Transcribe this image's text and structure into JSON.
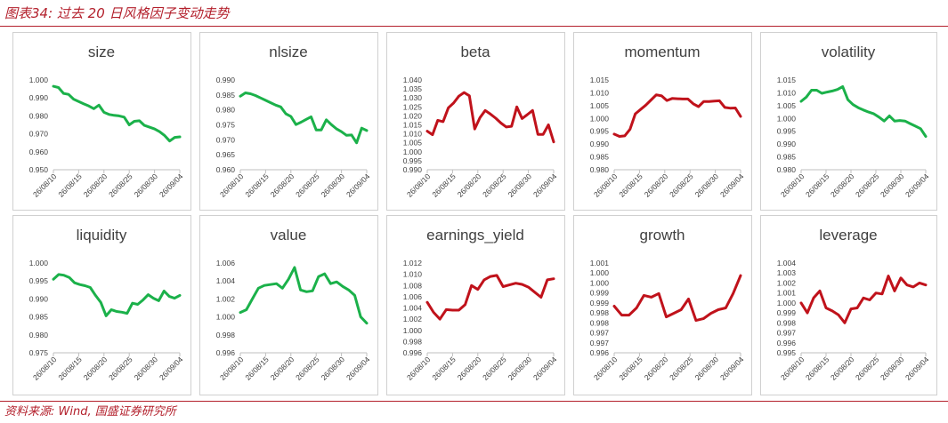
{
  "header": {
    "title": "图表34: 过去 20 日风格因子变动走势"
  },
  "footer": {
    "source": "资料来源: Wind, 国盛证券研究所"
  },
  "colors": {
    "brand": "#b3202c",
    "up_trend": "#1bb14a",
    "down_trend": "#c0121b",
    "axis": "#bfbfbf",
    "text": "#404040"
  },
  "chart_data": [
    {
      "type": "line",
      "title": "size",
      "color": "#1bb14a",
      "y_ticks": [
        "0.950",
        "0.960",
        "0.970",
        "0.980",
        "0.990",
        "1.000"
      ],
      "ylim": [
        0.95,
        1.0
      ],
      "x_ticks": [
        "26/08/10",
        "26/08/15",
        "26/08/20",
        "26/08/25",
        "26/08/30",
        "26/09/04"
      ],
      "values": [
        0.9965,
        0.9958,
        0.9925,
        0.992,
        0.9893,
        0.988,
        0.9867,
        0.9855,
        0.984,
        0.986,
        0.982,
        0.9808,
        0.9803,
        0.98,
        0.9793,
        0.975,
        0.977,
        0.9773,
        0.9747,
        0.9737,
        0.9727,
        0.9712,
        0.969,
        0.966,
        0.968,
        0.9683
      ]
    },
    {
      "type": "line",
      "title": "nlsize",
      "color": "#1bb14a",
      "y_ticks": [
        "0.960",
        "0.965",
        "0.970",
        "0.975",
        "0.980",
        "0.985",
        "0.990"
      ],
      "ylim": [
        0.96,
        0.99
      ],
      "x_ticks": [
        "26/08/10",
        "26/08/15",
        "26/08/20",
        "26/08/25",
        "26/08/30",
        "26/09/04"
      ],
      "values": [
        0.9846,
        0.9857,
        0.9854,
        0.9848,
        0.984,
        0.9832,
        0.9824,
        0.9816,
        0.981,
        0.9787,
        0.9778,
        0.9751,
        0.9759,
        0.9768,
        0.9777,
        0.9733,
        0.9733,
        0.9767,
        0.9751,
        0.9737,
        0.9727,
        0.9715,
        0.9716,
        0.969,
        0.9739,
        0.9731
      ]
    },
    {
      "type": "line",
      "title": "beta",
      "color": "#c0121b",
      "y_ticks": [
        "0.990",
        "0.995",
        "1.000",
        "1.005",
        "1.010",
        "1.015",
        "1.020",
        "1.025",
        "1.030",
        "1.035",
        "1.040"
      ],
      "ylim": [
        0.99,
        1.04
      ],
      "x_ticks": [
        "26/08/10",
        "26/08/15",
        "26/08/20",
        "26/08/25",
        "26/08/30",
        "26/09/04"
      ],
      "values": [
        1.0115,
        1.0095,
        1.0175,
        1.0168,
        1.0245,
        1.0272,
        1.031,
        1.033,
        1.0312,
        1.0127,
        1.019,
        1.023,
        1.021,
        1.0187,
        1.016,
        1.0138,
        1.0142,
        1.025,
        1.0185,
        1.0207,
        1.023,
        1.0097,
        1.0097,
        1.015,
        1.0055
      ]
    },
    {
      "type": "line",
      "title": "momentum",
      "color": "#c0121b",
      "y_ticks": [
        "0.980",
        "0.985",
        "0.990",
        "0.995",
        "1.000",
        "1.005",
        "1.010",
        "1.015"
      ],
      "ylim": [
        0.98,
        1.015
      ],
      "x_ticks": [
        "26/08/10",
        "26/08/15",
        "26/08/20",
        "26/08/25",
        "26/08/30",
        "26/09/04"
      ],
      "values": [
        0.9939,
        0.993,
        0.9932,
        0.9958,
        1.0018,
        1.0035,
        1.0052,
        1.0072,
        1.0092,
        1.0088,
        1.007,
        1.0078,
        1.0077,
        1.0076,
        1.0076,
        1.0057,
        1.0046,
        1.0066,
        1.0066,
        1.0068,
        1.0069,
        1.0043,
        1.004,
        1.0041,
        1.0008
      ]
    },
    {
      "type": "line",
      "title": "volatility",
      "color": "#1bb14a",
      "y_ticks": [
        "0.980",
        "0.985",
        "0.990",
        "0.995",
        "1.000",
        "1.005",
        "1.010",
        "1.015"
      ],
      "ylim": [
        0.98,
        1.015
      ],
      "x_ticks": [
        "26/08/10",
        "26/08/15",
        "26/08/20",
        "26/08/25",
        "26/08/30",
        "26/09/04"
      ],
      "values": [
        1.0067,
        1.0083,
        1.011,
        1.011,
        1.0098,
        1.0103,
        1.0107,
        1.0113,
        1.0124,
        1.0073,
        1.0054,
        1.0042,
        1.0033,
        1.0025,
        1.0018,
        1.0005,
        0.999,
        1.001,
        0.999,
        0.9992,
        0.999,
        0.998,
        0.997,
        0.996,
        0.993
      ]
    },
    {
      "type": "line",
      "title": "liquidity",
      "color": "#1bb14a",
      "y_ticks": [
        "0.975",
        "0.980",
        "0.985",
        "0.990",
        "0.995",
        "1.000"
      ],
      "ylim": [
        0.975,
        1.0
      ],
      "x_ticks": [
        "26/08/10",
        "26/08/15",
        "26/08/20",
        "26/08/25",
        "26/08/30",
        "26/09/04"
      ],
      "values": [
        0.9955,
        0.9968,
        0.9966,
        0.996,
        0.9945,
        0.994,
        0.9937,
        0.9932,
        0.991,
        0.989,
        0.9853,
        0.987,
        0.9865,
        0.9863,
        0.986,
        0.9888,
        0.9885,
        0.9897,
        0.9912,
        0.9902,
        0.9895,
        0.9922,
        0.9907,
        0.9902,
        0.991
      ]
    },
    {
      "type": "line",
      "title": "value",
      "color": "#1bb14a",
      "y_ticks": [
        "0.996",
        "0.998",
        "1.000",
        "1.002",
        "1.004",
        "1.006"
      ],
      "ylim": [
        0.996,
        1.006
      ],
      "x_ticks": [
        "26/08/10",
        "26/08/15",
        "26/08/20",
        "26/08/25",
        "26/08/30",
        "26/09/04"
      ],
      "values": [
        1.0005,
        1.0008,
        1.002,
        1.0032,
        1.0035,
        1.0036,
        1.0037,
        1.0032,
        1.0042,
        1.0055,
        1.003,
        1.0028,
        1.0029,
        1.0045,
        1.0048,
        1.0037,
        1.0039,
        1.0034,
        1.003,
        1.0024,
        1.0,
        0.9993
      ]
    },
    {
      "type": "line",
      "title": "earnings_yield",
      "color": "#c0121b",
      "y_ticks": [
        "0.996",
        "0.998",
        "1.000",
        "1.002",
        "1.004",
        "1.006",
        "1.008",
        "1.010",
        "1.012"
      ],
      "ylim": [
        0.996,
        1.012
      ],
      "x_ticks": [
        "26/08/10",
        "26/08/15",
        "26/08/20",
        "26/08/25",
        "26/08/30",
        "26/09/04"
      ],
      "values": [
        1.005,
        1.0032,
        1.002,
        1.0037,
        1.0036,
        1.0036,
        1.0046,
        1.008,
        1.0073,
        1.009,
        1.0096,
        1.0098,
        1.0078,
        1.0081,
        1.0084,
        1.0082,
        1.0077,
        1.0068,
        1.0059,
        1.009,
        1.0092
      ]
    },
    {
      "type": "line",
      "title": "growth",
      "color": "#c0121b",
      "y_ticks": [
        "0.996",
        "0.997",
        "0.997",
        "0.998",
        "0.998",
        "0.999",
        "0.999",
        "1.000",
        "1.000",
        "1.001"
      ],
      "ylim": [
        0.996,
        1.001
      ],
      "x_ticks": [
        "26/08/10",
        "26/08/15",
        "26/08/20",
        "26/08/25",
        "26/08/30",
        "26/09/04"
      ],
      "values": [
        0.9986,
        0.9981,
        0.9981,
        0.9985,
        0.9992,
        0.9991,
        0.9993,
        0.998,
        0.9982,
        0.9984,
        0.999,
        0.9978,
        0.9979,
        0.9982,
        0.9984,
        0.9985,
        0.9993,
        1.0003
      ]
    },
    {
      "type": "line",
      "title": "leverage",
      "color": "#c0121b",
      "y_ticks": [
        "0.995",
        "0.996",
        "0.997",
        "0.998",
        "0.999",
        "1.000",
        "1.001",
        "1.002",
        "1.003",
        "1.004"
      ],
      "ylim": [
        0.995,
        1.004
      ],
      "x_ticks": [
        "26/08/10",
        "26/08/15",
        "26/08/20",
        "26/08/25",
        "26/08/30",
        "26/09/04"
      ],
      "values": [
        1.0,
        0.999,
        1.0005,
        1.0012,
        0.9995,
        0.9992,
        0.9988,
        0.998,
        0.9994,
        0.9995,
        1.0005,
        1.0003,
        1.001,
        1.0009,
        1.0027,
        1.0012,
        1.0025,
        1.0018,
        1.0016,
        1.002,
        1.0018
      ]
    }
  ]
}
